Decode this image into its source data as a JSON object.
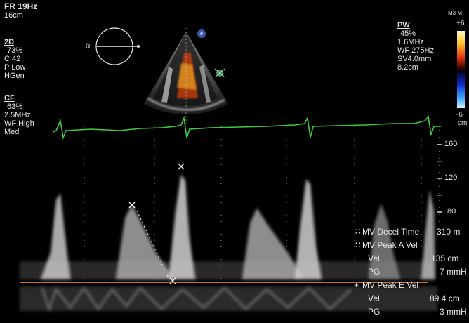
{
  "top_left": {
    "frame_rate": "FR 19Hz",
    "depth": "16cm"
  },
  "settings_2d": {
    "header": "2D",
    "lines": [
      "73%",
      "C 42",
      "P Low",
      "HGen"
    ]
  },
  "settings_cf": {
    "header": "CF",
    "lines": [
      "63%",
      "2.5MHz",
      "WF High",
      "Med"
    ]
  },
  "settings_pw": {
    "header": "PW",
    "lines": [
      "45%",
      "1.6MHz",
      "WF 275Hz",
      "SV4.0mm",
      "8.2cm"
    ]
  },
  "probe_indicator": {
    "value": "0"
  },
  "color_bar": {
    "top_label": "M3 M",
    "max": "+6",
    "min": "-6",
    "unit": "cm"
  },
  "velocity_scale": {
    "ticks": [
      "160",
      "120",
      "80"
    ]
  },
  "measurements": [
    {
      "marker": "∷",
      "label": "MV Decel Time",
      "value": "310 m"
    },
    {
      "marker": "∷",
      "label": "MV Peak A Vel",
      "value": ""
    },
    {
      "marker": "",
      "label": "Vel",
      "value": "135 cm"
    },
    {
      "marker": "",
      "label": "PG",
      "value": "7 mmH"
    },
    {
      "marker": "+",
      "label": "MV Peak E Vel",
      "value": ""
    },
    {
      "marker": "",
      "label": "Vel",
      "value": "89.4 cm"
    },
    {
      "marker": "",
      "label": "PG",
      "value": "3 mmH"
    }
  ],
  "colors": {
    "ecg": "#3fc93f",
    "baseline": "#c8702a",
    "spectrum": "#bdbdbd",
    "text": "#e6e6e6"
  }
}
